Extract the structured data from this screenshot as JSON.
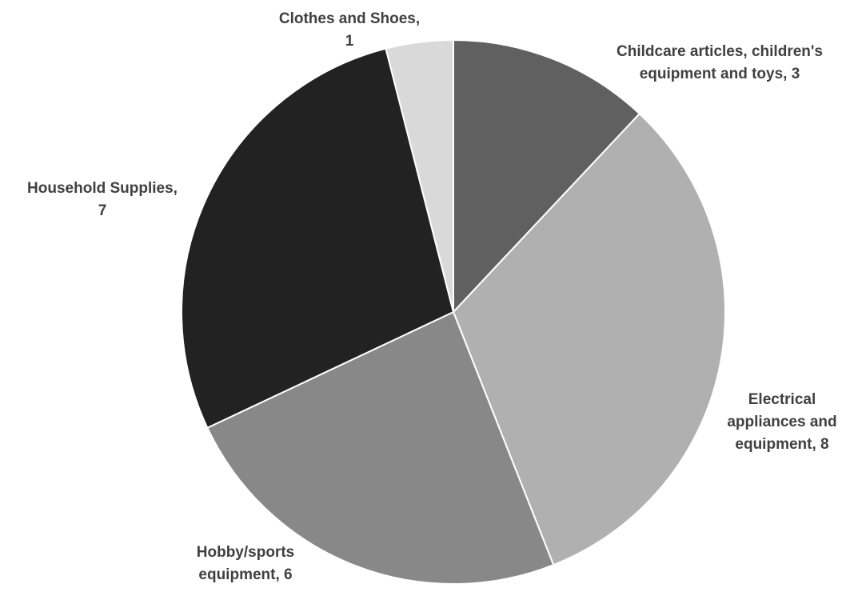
{
  "chart_data": {
    "type": "pie",
    "title": "",
    "slices": [
      {
        "label": "Childcare articles, children's equipment and toys",
        "value": 3,
        "color": "#606060",
        "label_lines": [
          "Childcare articles, children's",
          "equipment and toys, 3"
        ]
      },
      {
        "label": "Electrical appliances and equipment",
        "value": 8,
        "color": "#b0b0b0",
        "label_lines": [
          "Electrical",
          "appliances and",
          "equipment, 8"
        ]
      },
      {
        "label": "Hobby/sports equipment",
        "value": 6,
        "color": "#888888",
        "label_lines": [
          "Hobby/sports",
          "equipment, 6"
        ]
      },
      {
        "label": "Household Supplies",
        "value": 7,
        "color": "#222222",
        "label_lines": [
          "Household Supplies,",
          "7"
        ]
      },
      {
        "label": "Clothes and Shoes",
        "value": 1,
        "color": "#d9d9d9",
        "label_lines": [
          "Clothes and Shoes,",
          "1"
        ]
      }
    ],
    "start_angle": "12 o'clock",
    "direction": "clockwise",
    "legend": "none",
    "data_labels": "category name and value"
  }
}
